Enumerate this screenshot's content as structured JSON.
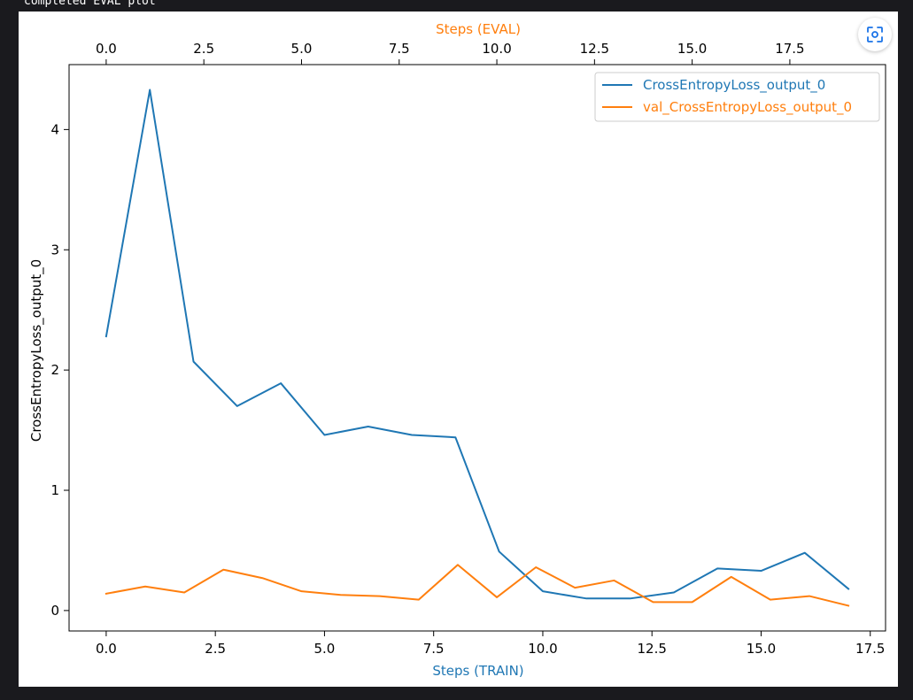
{
  "caption": "completed EVAL plot",
  "chart_data": {
    "type": "line",
    "ylabel": "CrossEntropyLoss_output_0",
    "xlabel_bottom": "Steps (TRAIN)",
    "xlabel_top": "Steps (EVAL)",
    "xlim_bottom": [
      -0.85,
      17.85
    ],
    "xlim_top": [
      -0.95,
      19.95
    ],
    "ylim": [
      -0.17,
      4.54
    ],
    "yticks": [
      0,
      1,
      2,
      3,
      4
    ],
    "xticks_bottom": [
      "0.0",
      "2.5",
      "5.0",
      "7.5",
      "10.0",
      "12.5",
      "15.0",
      "17.5"
    ],
    "xticks_top": [
      "0.0",
      "2.5",
      "5.0",
      "7.5",
      "10.0",
      "12.5",
      "15.0",
      "17.5"
    ],
    "legend_placement": "upper right",
    "series": [
      {
        "name": "CrossEntropyLoss_output_0",
        "axis": "bottom",
        "color": "#1f77b4",
        "x": [
          0,
          1,
          2,
          3,
          4,
          5,
          6,
          7,
          8,
          9,
          10,
          11,
          12,
          13,
          14,
          15,
          16,
          17
        ],
        "y": [
          2.28,
          4.33,
          2.07,
          1.7,
          1.89,
          1.46,
          1.53,
          1.46,
          1.44,
          0.49,
          0.16,
          0.1,
          0.1,
          0.15,
          0.35,
          0.33,
          0.48,
          0.18
        ]
      },
      {
        "name": "val_CrossEntropyLoss_output_0",
        "axis": "top",
        "color": "#ff7f0e",
        "x": [
          0,
          1,
          2,
          3,
          4,
          5,
          6,
          7,
          8,
          9,
          10,
          11,
          12,
          13,
          14,
          15,
          16,
          17,
          18,
          19
        ],
        "y": [
          0.14,
          0.2,
          0.15,
          0.34,
          0.27,
          0.16,
          0.13,
          0.12,
          0.09,
          0.38,
          0.11,
          0.36,
          0.19,
          0.25,
          0.07,
          0.07,
          0.28,
          0.09,
          0.12,
          0.04
        ]
      }
    ]
  }
}
